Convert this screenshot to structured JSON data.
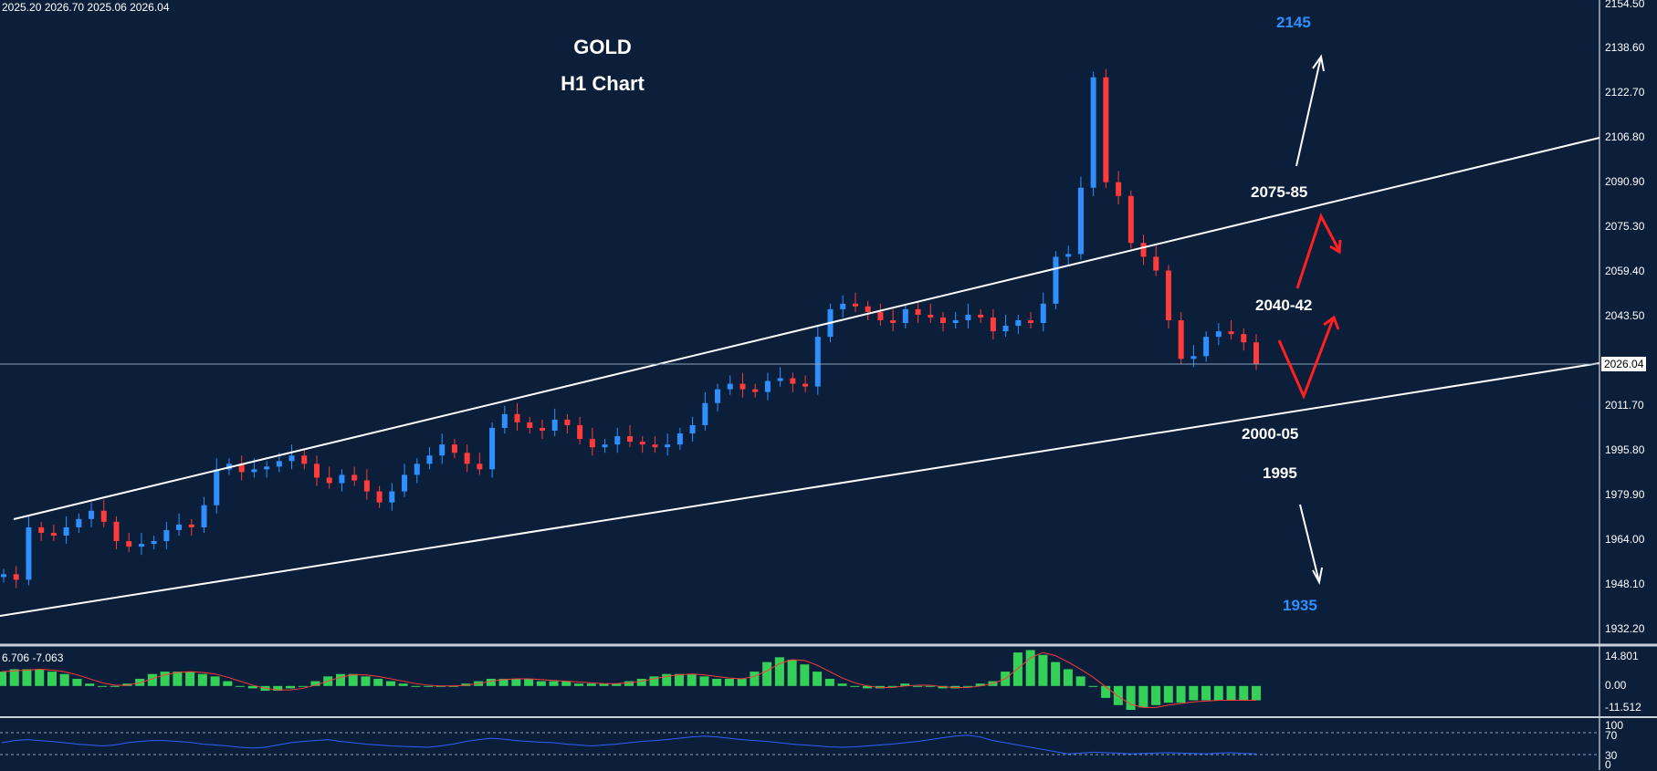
{
  "ohlc_readout": "2025.20 2026.70 2025.06 2026.04",
  "title_line1": "GOLD",
  "title_line2": "H1 Chart",
  "levels": {
    "target_up": "2145",
    "resistance_2": "2075-85",
    "resistance_1": "2040-42",
    "support_1": "2000-05",
    "support_2": "1995",
    "target_down": "1935"
  },
  "current_price_tag": "2026.04",
  "price_axis": [
    "2154.50",
    "2138.60",
    "2122.70",
    "2106.80",
    "2090.90",
    "2075.30",
    "2059.40",
    "2043.50",
    "2011.70",
    "1995.80",
    "1979.90",
    "1964.00",
    "1948.10",
    "1932.20"
  ],
  "macd_readout": "6.706 -7.063",
  "macd_axis": [
    "14.801",
    "0.00",
    "-11.512"
  ],
  "rsi_axis": [
    "100",
    "70",
    "30",
    "0"
  ],
  "colors": {
    "background": "#0b1f3a",
    "bull_candle": "#2f8fff",
    "bear_candle": "#ff3b3b",
    "channel_lines": "#ffffff",
    "target_text": "#2f8fff",
    "red_arrows": "#ff2020",
    "macd_histogram": "#34d058",
    "macd_signal": "#ff3b3b",
    "rsi_line": "#2f5fff"
  },
  "chart_data": [
    {
      "type": "line",
      "title": "GOLD H1 Chart",
      "ylim": [
        1925,
        2158
      ],
      "series": [
        {
          "values": [
            1950,
            1948,
            1967,
            1965,
            1964,
            1967,
            1970,
            1973,
            1969,
            1962,
            1960,
            1961,
            1962,
            1966,
            1968,
            1967,
            1975,
            1988,
            1990,
            1987,
            1988,
            1989,
            1991,
            1993,
            1990,
            1985,
            1983,
            1986,
            1984,
            1980,
            1976,
            1980,
            1986,
            1990,
            1993,
            1997,
            1994,
            1990,
            1988,
            2003,
            2008,
            2005,
            2003,
            2002,
            2006,
            2004,
            1999,
            1996,
            1997,
            2000,
            1998,
            1997,
            1996,
            1997,
            2001,
            2004,
            2012,
            2017,
            2019,
            2017,
            2016,
            2020,
            2021,
            2019,
            2018,
            2036,
            2046,
            2048,
            2047,
            2045,
            2042,
            2041,
            2046,
            2044,
            2043,
            2041,
            2042,
            2044,
            2043,
            2038,
            2040,
            2042,
            2041,
            2048,
            2065,
            2066,
            2090,
            2130,
            2092,
            2087,
            2070,
            2065,
            2060,
            2042,
            2028,
            2029,
            2036,
            2038,
            2037,
            2034,
            2026
          ]
        }
      ],
      "annotations": [
        "2145",
        "2075-85",
        "2040-42",
        "2000-05",
        "1995",
        "1935"
      ],
      "current_price": 2026.04
    },
    {
      "type": "bar",
      "title": "MACD",
      "values": [
        6,
        7,
        7,
        7,
        6,
        5,
        3,
        1,
        0,
        0,
        1,
        3,
        5,
        6,
        6,
        6,
        5,
        4,
        2,
        0,
        -1,
        -2,
        -2,
        -1,
        0,
        2,
        4,
        5,
        5,
        4,
        3,
        2,
        1,
        0,
        0,
        0,
        0,
        1,
        2,
        3,
        3,
        3,
        3,
        2,
        2,
        2,
        1,
        1,
        1,
        1,
        2,
        3,
        4,
        5,
        5,
        5,
        4,
        3,
        3,
        3,
        6,
        10,
        12,
        11,
        9,
        6,
        3,
        1,
        0,
        -1,
        -1,
        0,
        1,
        0,
        0,
        -1,
        -1,
        0,
        1,
        2,
        6,
        14,
        15,
        13,
        10,
        7,
        4,
        0,
        -5,
        -8,
        -10,
        -9,
        -8,
        -7,
        -7,
        -6,
        -6,
        -6,
        -6,
        -6,
        -6
      ],
      "ylim": [
        -11.512,
        14.801
      ]
    },
    {
      "type": "line",
      "title": "RSI",
      "values": [
        55,
        60,
        62,
        60,
        58,
        55,
        52,
        50,
        48,
        50,
        55,
        58,
        60,
        60,
        58,
        56,
        52,
        50,
        48,
        45,
        43,
        45,
        50,
        55,
        58,
        60,
        62,
        58,
        55,
        52,
        50,
        48,
        47,
        46,
        45,
        48,
        52,
        58,
        62,
        65,
        63,
        60,
        58,
        56,
        55,
        52,
        50,
        48,
        50,
        52,
        55,
        58,
        60,
        62,
        65,
        68,
        70,
        68,
        65,
        62,
        60,
        58,
        55,
        52,
        50,
        48,
        46,
        45,
        46,
        48,
        50,
        52,
        55,
        58,
        62,
        66,
        70,
        72,
        68,
        60,
        55,
        50,
        45,
        40,
        35,
        30,
        32,
        34,
        33,
        32,
        30,
        31,
        32,
        33,
        32,
        31,
        30,
        32,
        33,
        31,
        30
      ],
      "ylim": [
        0,
        100
      ]
    }
  ]
}
